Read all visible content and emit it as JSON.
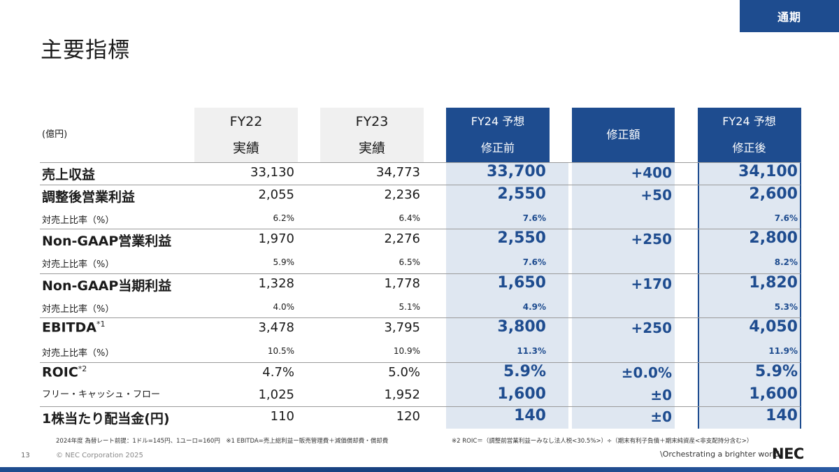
{
  "tag": "通期",
  "title": "主要指標",
  "unit_label": "(億円)",
  "headers": [
    {
      "line1": "FY22",
      "line2": "実績"
    },
    {
      "line1": "FY23",
      "line2": "実績"
    },
    {
      "line1": "FY24 予想",
      "line2": "修正前"
    },
    {
      "line1": "修正額",
      "line2": ""
    },
    {
      "line1": "FY24 予想",
      "line2": "修正後"
    }
  ],
  "rows": [
    {
      "label": "売上収益",
      "note": "",
      "type": "big",
      "values": [
        "33,130",
        "34,773",
        "33,700",
        "+400",
        "34,100"
      ]
    },
    {
      "label": "調整後営業利益",
      "note": "",
      "type": "big",
      "values": [
        "2,055",
        "2,236",
        "2,550",
        "+50",
        "2,600"
      ]
    },
    {
      "label": "対売上比率（%）",
      "note": "",
      "type": "small",
      "values": [
        "6.2%",
        "6.4%",
        "7.6%",
        "",
        "7.6%"
      ]
    },
    {
      "label": "Non-GAAP営業利益",
      "note": "",
      "type": "big",
      "values": [
        "1,970",
        "2,276",
        "2,550",
        "+250",
        "2,800"
      ]
    },
    {
      "label": "対売上比率（%）",
      "note": "",
      "type": "small",
      "values": [
        "5.9%",
        "6.5%",
        "7.6%",
        "",
        "8.2%"
      ]
    },
    {
      "label": "Non-GAAP当期利益",
      "note": "",
      "type": "big",
      "values": [
        "1,328",
        "1,778",
        "1,650",
        "+170",
        "1,820"
      ]
    },
    {
      "label": "対売上比率（%）",
      "note": "",
      "type": "small",
      "values": [
        "4.0%",
        "5.1%",
        "4.9%",
        "",
        "5.3%"
      ]
    },
    {
      "label": "EBITDA",
      "note": "*1",
      "type": "big",
      "values": [
        "3,478",
        "3,795",
        "3,800",
        "+250",
        "4,050"
      ]
    },
    {
      "label": "対売上比率（%）",
      "note": "",
      "type": "small",
      "values": [
        "10.5%",
        "10.9%",
        "11.3%",
        "",
        "11.9%"
      ]
    },
    {
      "label": "ROIC",
      "note": "*2",
      "type": "big",
      "values": [
        "4.7%",
        "5.0%",
        "5.9%",
        "±0.0%",
        "5.9%"
      ]
    },
    {
      "label": "フリー・キャッシュ・フロー",
      "note": "",
      "type": "mid",
      "values": [
        "1,025",
        "1,952",
        "1,600",
        "±0",
        "1,600"
      ]
    },
    {
      "label": "1株当たり配当金(円)",
      "note": "",
      "type": "big",
      "values": [
        "110",
        "120",
        "140",
        "±0",
        "140"
      ]
    }
  ],
  "footnotes": {
    "f1": "2024年度 為替レート前提：1ドル=145円、1ユーロ=160円　※1  EBITDA=売上総利益ー販売管理費＋減価償却費・償却費",
    "f2": "※2  ROIC＝（調整前営業利益ーみなし法人税<30.5%>）÷（期末有利子負債＋期末純資産<非支配持分含む>）"
  },
  "footer": {
    "page": "13",
    "copyright": "© NEC Corporation 2025",
    "slogan": "\\Orchestrating a brighter world",
    "logo": "NEC"
  }
}
